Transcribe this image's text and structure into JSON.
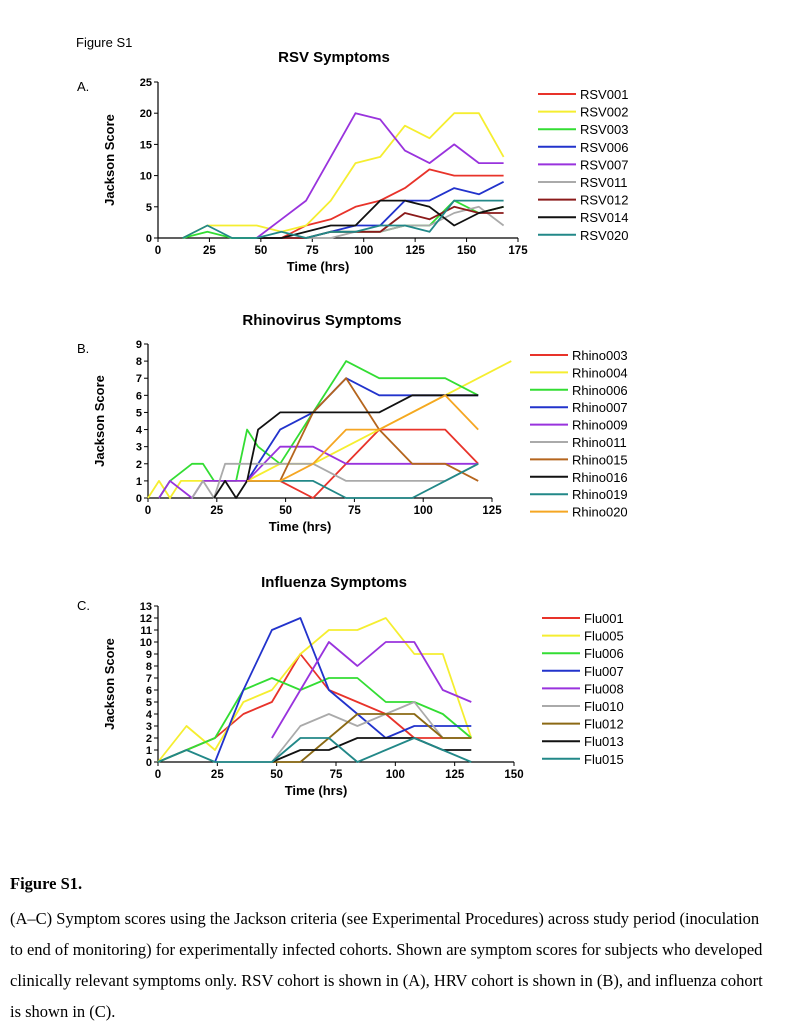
{
  "figure_label": "Figure S1",
  "panel_letters": [
    "A.",
    "B.",
    "C."
  ],
  "caption": {
    "title": "Figure S1.",
    "text": "(A–C) Symptom scores using the Jackson criteria (see Experimental Procedures) across study period (inoculation to end of monitoring) for experimentally infected cohorts. Shown are symptom scores for subjects who developed clinically relevant symptoms only. RSV cohort is shown in (A), HRV cohort is shown in (B), and influenza cohort is shown in (C)."
  },
  "chart_data": [
    {
      "type": "line",
      "title": "RSV Symptoms",
      "xlabel": "Time (hrs)",
      "ylabel": "Jackson Score",
      "xlim": [
        0,
        175
      ],
      "ylim": [
        0,
        25
      ],
      "xticks": [
        0,
        25,
        50,
        75,
        100,
        125,
        150,
        175
      ],
      "yticks": [
        0,
        5,
        10,
        15,
        20,
        25
      ],
      "legend_position": "right",
      "series": [
        {
          "name": "RSV001",
          "color": "#e8332a",
          "x": [
            48,
            60,
            72,
            84,
            96,
            108,
            120,
            132,
            144,
            156,
            168
          ],
          "y": [
            0,
            0,
            2,
            3,
            5,
            6,
            8,
            11,
            10,
            10,
            10
          ]
        },
        {
          "name": "RSV002",
          "color": "#f5ee30",
          "x": [
            12,
            24,
            36,
            48,
            60,
            72,
            84,
            96,
            108,
            120,
            132,
            144,
            156,
            168
          ],
          "y": [
            0,
            2,
            2,
            2,
            1,
            2,
            6,
            12,
            13,
            18,
            16,
            20,
            20,
            13
          ]
        },
        {
          "name": "RSV003",
          "color": "#33dd33",
          "x": [
            12,
            24,
            36,
            48,
            60,
            72,
            84,
            96,
            108,
            120,
            132,
            144,
            156,
            168
          ],
          "y": [
            0,
            1,
            0,
            0,
            0,
            0,
            1,
            1,
            1,
            2,
            2,
            6,
            4,
            5
          ]
        },
        {
          "name": "RSV006",
          "color": "#2233cc",
          "x": [
            48,
            60,
            72,
            84,
            96,
            108,
            120,
            132,
            144,
            156,
            168
          ],
          "y": [
            0,
            0,
            0,
            1,
            2,
            2,
            6,
            6,
            8,
            7,
            9
          ]
        },
        {
          "name": "RSV007",
          "color": "#9933dd",
          "x": [
            48,
            60,
            72,
            84,
            96,
            108,
            120,
            132,
            144,
            156,
            168
          ],
          "y": [
            0,
            3,
            6,
            13,
            20,
            19,
            14,
            12,
            15,
            12,
            12
          ]
        },
        {
          "name": "RSV011",
          "color": "#aaaaaa",
          "x": [
            48,
            60,
            72,
            84,
            96,
            108,
            120,
            132,
            144,
            156,
            168
          ],
          "y": [
            0,
            0,
            0,
            0,
            1,
            1,
            2,
            2,
            4,
            5,
            2
          ]
        },
        {
          "name": "RSV012",
          "color": "#8b1a1a",
          "x": [
            48,
            60,
            72,
            84,
            96,
            108,
            120,
            132,
            144,
            156,
            168
          ],
          "y": [
            0,
            0,
            0,
            1,
            1,
            1,
            4,
            3,
            5,
            4,
            4
          ]
        },
        {
          "name": "RSV014",
          "color": "#111111",
          "x": [
            48,
            60,
            72,
            84,
            96,
            108,
            120,
            132,
            144,
            156,
            168
          ],
          "y": [
            0,
            0,
            1,
            2,
            2,
            6,
            6,
            5,
            2,
            4,
            5
          ]
        },
        {
          "name": "RSV020",
          "color": "#228888",
          "x": [
            12,
            24,
            36,
            48,
            60,
            72,
            84,
            96,
            108,
            120,
            132,
            144,
            156,
            168
          ],
          "y": [
            0,
            2,
            0,
            0,
            1,
            0,
            1,
            1,
            2,
            2,
            1,
            6,
            6,
            6
          ]
        }
      ]
    },
    {
      "type": "line",
      "title": "Rhinovirus Symptoms",
      "xlabel": "Time (hrs)",
      "ylabel": "Jackson Score",
      "xlim": [
        0,
        125
      ],
      "ylim": [
        0,
        9
      ],
      "xticks": [
        0,
        25,
        50,
        75,
        100,
        125
      ],
      "yticks": [
        0,
        1,
        2,
        3,
        4,
        5,
        6,
        7,
        8,
        9
      ],
      "legend_position": "right",
      "series": [
        {
          "name": "Rhino003",
          "color": "#e8332a",
          "x": [
            36,
            48,
            60,
            72,
            84,
            96,
            108,
            120
          ],
          "y": [
            1,
            1,
            0,
            2,
            4,
            4,
            4,
            2
          ]
        },
        {
          "name": "Rhino004",
          "color": "#f5ee30",
          "x": [
            0,
            4,
            8,
            12,
            24,
            36,
            48,
            60,
            72,
            84,
            96,
            108,
            120,
            132
          ],
          "y": [
            0,
            1,
            0,
            1,
            1,
            1,
            2,
            2,
            3,
            4,
            5,
            6,
            7,
            8
          ]
        },
        {
          "name": "Rhino006",
          "color": "#33dd33",
          "x": [
            4,
            8,
            16,
            20,
            24,
            32,
            36,
            40,
            48,
            60,
            72,
            84,
            96,
            108,
            120
          ],
          "y": [
            0,
            1,
            2,
            2,
            1,
            1,
            4,
            3,
            2,
            5,
            8,
            7,
            7,
            7,
            6
          ]
        },
        {
          "name": "Rhino007",
          "color": "#2233cc",
          "x": [
            36,
            48,
            60,
            72,
            84,
            96,
            108,
            120
          ],
          "y": [
            1,
            4,
            5,
            7,
            6,
            6,
            6,
            6
          ]
        },
        {
          "name": "Rhino009",
          "color": "#9933dd",
          "x": [
            4,
            8,
            16,
            20,
            24,
            32,
            36,
            48,
            60,
            72,
            84,
            96,
            108,
            120
          ],
          "y": [
            0,
            1,
            0,
            1,
            1,
            1,
            1,
            3,
            3,
            2,
            2,
            2,
            2,
            2
          ]
        },
        {
          "name": "Rhino011",
          "color": "#aaaaaa",
          "x": [
            16,
            20,
            24,
            28,
            36,
            48,
            60,
            72,
            84,
            96,
            108,
            120
          ],
          "y": [
            0,
            1,
            0,
            2,
            2,
            2,
            2,
            1,
            1,
            1,
            1,
            2
          ]
        },
        {
          "name": "Rhino015",
          "color": "#b5651d",
          "x": [
            36,
            48,
            60,
            72,
            84,
            96,
            108,
            120
          ],
          "y": [
            1,
            1,
            5,
            7,
            4,
            2,
            2,
            1
          ]
        },
        {
          "name": "Rhino016",
          "color": "#111111",
          "x": [
            24,
            28,
            32,
            36,
            40,
            48,
            60,
            72,
            84,
            96,
            108,
            120
          ],
          "y": [
            0,
            1,
            0,
            1,
            4,
            5,
            5,
            5,
            5,
            6,
            6,
            6
          ]
        },
        {
          "name": "Rhino019",
          "color": "#228888",
          "x": [
            36,
            48,
            60,
            72,
            84,
            96,
            108,
            120
          ],
          "y": [
            1,
            1,
            1,
            0,
            0,
            0,
            1,
            2
          ]
        },
        {
          "name": "Rhino020",
          "color": "#f5a623",
          "x": [
            36,
            48,
            60,
            72,
            84,
            96,
            108,
            120
          ],
          "y": [
            1,
            1,
            2,
            4,
            4,
            5,
            6,
            4
          ]
        }
      ]
    },
    {
      "type": "line",
      "title": "Influenza Symptoms",
      "xlabel": "Time (hrs)",
      "ylabel": "Jackson Score",
      "xlim": [
        0,
        150
      ],
      "ylim": [
        0,
        13
      ],
      "xticks": [
        0,
        25,
        50,
        75,
        100,
        125,
        150
      ],
      "yticks": [
        0,
        1,
        2,
        3,
        4,
        5,
        6,
        7,
        8,
        9,
        10,
        11,
        12,
        13
      ],
      "legend_position": "right",
      "series": [
        {
          "name": "Flu001",
          "color": "#e8332a",
          "x": [
            0,
            12,
            24,
            36,
            48,
            60,
            72,
            84,
            96,
            108,
            120,
            132
          ],
          "y": [
            0,
            1,
            2,
            4,
            5,
            9,
            6,
            5,
            4,
            2,
            2,
            2
          ]
        },
        {
          "name": "Flu005",
          "color": "#f5ee30",
          "x": [
            0,
            12,
            24,
            36,
            48,
            60,
            72,
            84,
            96,
            108,
            120,
            132
          ],
          "y": [
            0,
            3,
            1,
            5,
            6,
            9,
            11,
            11,
            12,
            9,
            9,
            2
          ]
        },
        {
          "name": "Flu006",
          "color": "#33dd33",
          "x": [
            0,
            12,
            24,
            36,
            48,
            60,
            72,
            84,
            96,
            108,
            120,
            132
          ],
          "y": [
            0,
            1,
            2,
            6,
            7,
            6,
            7,
            7,
            5,
            5,
            4,
            2
          ]
        },
        {
          "name": "Flu007",
          "color": "#2233cc",
          "x": [
            24,
            36,
            48,
            60,
            72,
            84,
            96,
            108,
            120,
            132
          ],
          "y": [
            0,
            6,
            11,
            12,
            6,
            4,
            2,
            3,
            3,
            3
          ]
        },
        {
          "name": "Flu008",
          "color": "#9933dd",
          "x": [
            48,
            60,
            72,
            84,
            96,
            108,
            120,
            132
          ],
          "y": [
            2,
            6,
            10,
            8,
            10,
            10,
            6,
            5
          ]
        },
        {
          "name": "Flu010",
          "color": "#aaaaaa",
          "x": [
            48,
            60,
            72,
            84,
            96,
            108,
            120,
            132
          ],
          "y": [
            0,
            3,
            4,
            3,
            4,
            5,
            2,
            2
          ]
        },
        {
          "name": "Flu012",
          "color": "#8b6914",
          "x": [
            48,
            60,
            72,
            84,
            96,
            108,
            120,
            132
          ],
          "y": [
            0,
            0,
            2,
            4,
            4,
            4,
            2,
            2
          ]
        },
        {
          "name": "Flu013",
          "color": "#111111",
          "x": [
            48,
            60,
            72,
            84,
            96,
            108,
            120,
            132
          ],
          "y": [
            0,
            1,
            1,
            2,
            2,
            2,
            1,
            1
          ]
        },
        {
          "name": "Flu015",
          "color": "#228888",
          "x": [
            0,
            12,
            24,
            36,
            48,
            60,
            72,
            84,
            96,
            108,
            120,
            132
          ],
          "y": [
            0,
            1,
            0,
            0,
            0,
            2,
            2,
            0,
            1,
            2,
            1,
            0
          ]
        }
      ]
    }
  ]
}
